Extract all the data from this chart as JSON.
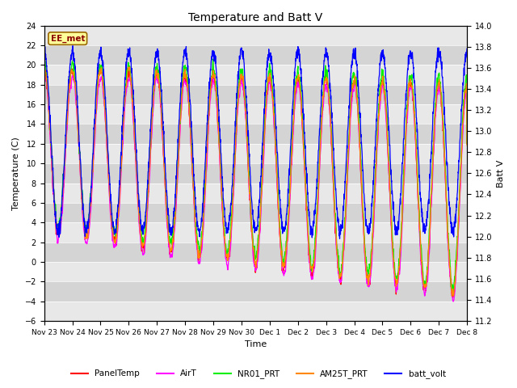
{
  "title": "Temperature and Batt V",
  "xlabel": "Time",
  "ylabel_left": "Temperature (C)",
  "ylabel_right": "Batt V",
  "ylim_left": [
    -6,
    24
  ],
  "ylim_right": [
    11.2,
    14.0
  ],
  "station_label": "EE_met",
  "background_color": "#ffffff",
  "series_colors": {
    "PanelTemp": "#ff0000",
    "AirT": "#ff00ff",
    "NR01_PRT": "#00ee00",
    "AM25T_PRT": "#ff8800",
    "batt_volt": "#0000ff"
  },
  "legend_entries": [
    "PanelTemp",
    "AirT",
    "NR01_PRT",
    "AM25T_PRT",
    "batt_volt"
  ],
  "xtick_labels": [
    "Nov 23",
    "Nov 24",
    "Nov 25",
    "Nov 26",
    "Nov 27",
    "Nov 28",
    "Nov 29",
    "Nov 30",
    "Dec 1",
    "Dec 2",
    "Dec 3",
    "Dec 4",
    "Dec 5",
    "Dec 6",
    "Dec 7",
    "Dec 8"
  ],
  "yticks_left": [
    -6,
    -4,
    -2,
    0,
    2,
    4,
    6,
    8,
    10,
    12,
    14,
    16,
    18,
    20,
    22,
    24
  ],
  "yticks_right": [
    11.2,
    11.4,
    11.6,
    11.8,
    12.0,
    12.2,
    12.4,
    12.6,
    12.8,
    13.0,
    13.2,
    13.4,
    13.6,
    13.8,
    14.0
  ],
  "n_days": 15,
  "pts_per_day": 144,
  "stripe_colors": [
    "#e8e8e8",
    "#d4d4d4"
  ]
}
